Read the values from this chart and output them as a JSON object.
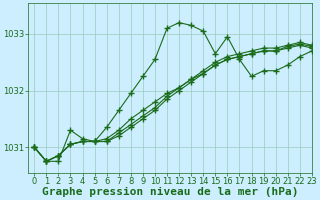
{
  "title": "Graphe pression niveau de la mer (hPa)",
  "background_color": "#cceeff",
  "grid_color_major": "#99ccbb",
  "line_color": "#1a6b1a",
  "xlim": [
    -0.5,
    23
  ],
  "ylim": [
    1030.55,
    1033.55
  ],
  "yticks": [
    1031,
    1032,
    1033
  ],
  "xticks": [
    0,
    1,
    2,
    3,
    4,
    5,
    6,
    7,
    8,
    9,
    10,
    11,
    12,
    13,
    14,
    15,
    16,
    17,
    18,
    19,
    20,
    21,
    22,
    23
  ],
  "series": [
    [
      1031.0,
      1030.75,
      1030.75,
      1031.3,
      1031.15,
      1031.1,
      1031.35,
      1031.65,
      1031.95,
      1032.25,
      1032.55,
      1033.1,
      1033.2,
      1033.15,
      1033.05,
      1032.65,
      1032.95,
      1032.55,
      1032.25,
      1032.35,
      1032.35,
      1032.45,
      1032.6,
      1032.7
    ],
    [
      1031.0,
      1030.75,
      1030.85,
      1031.05,
      1031.1,
      1031.1,
      1031.1,
      1031.2,
      1031.35,
      1031.5,
      1031.65,
      1031.85,
      1032.0,
      1032.15,
      1032.3,
      1032.45,
      1032.55,
      1032.6,
      1032.65,
      1032.7,
      1032.7,
      1032.75,
      1032.8,
      1032.75
    ],
    [
      1031.0,
      1030.75,
      1030.85,
      1031.05,
      1031.1,
      1031.1,
      1031.15,
      1031.3,
      1031.5,
      1031.65,
      1031.8,
      1031.95,
      1032.05,
      1032.2,
      1032.35,
      1032.5,
      1032.6,
      1032.65,
      1032.7,
      1032.75,
      1032.75,
      1032.8,
      1032.85,
      1032.8
    ],
    [
      1031.0,
      1030.75,
      1030.85,
      1031.05,
      1031.1,
      1031.1,
      1031.1,
      1031.25,
      1031.4,
      1031.55,
      1031.7,
      1031.9,
      1032.05,
      1032.2,
      1032.3,
      1032.45,
      1032.55,
      1032.6,
      1032.65,
      1032.7,
      1032.7,
      1032.78,
      1032.82,
      1032.78
    ]
  ],
  "title_fontsize": 8,
  "tick_fontsize": 6
}
